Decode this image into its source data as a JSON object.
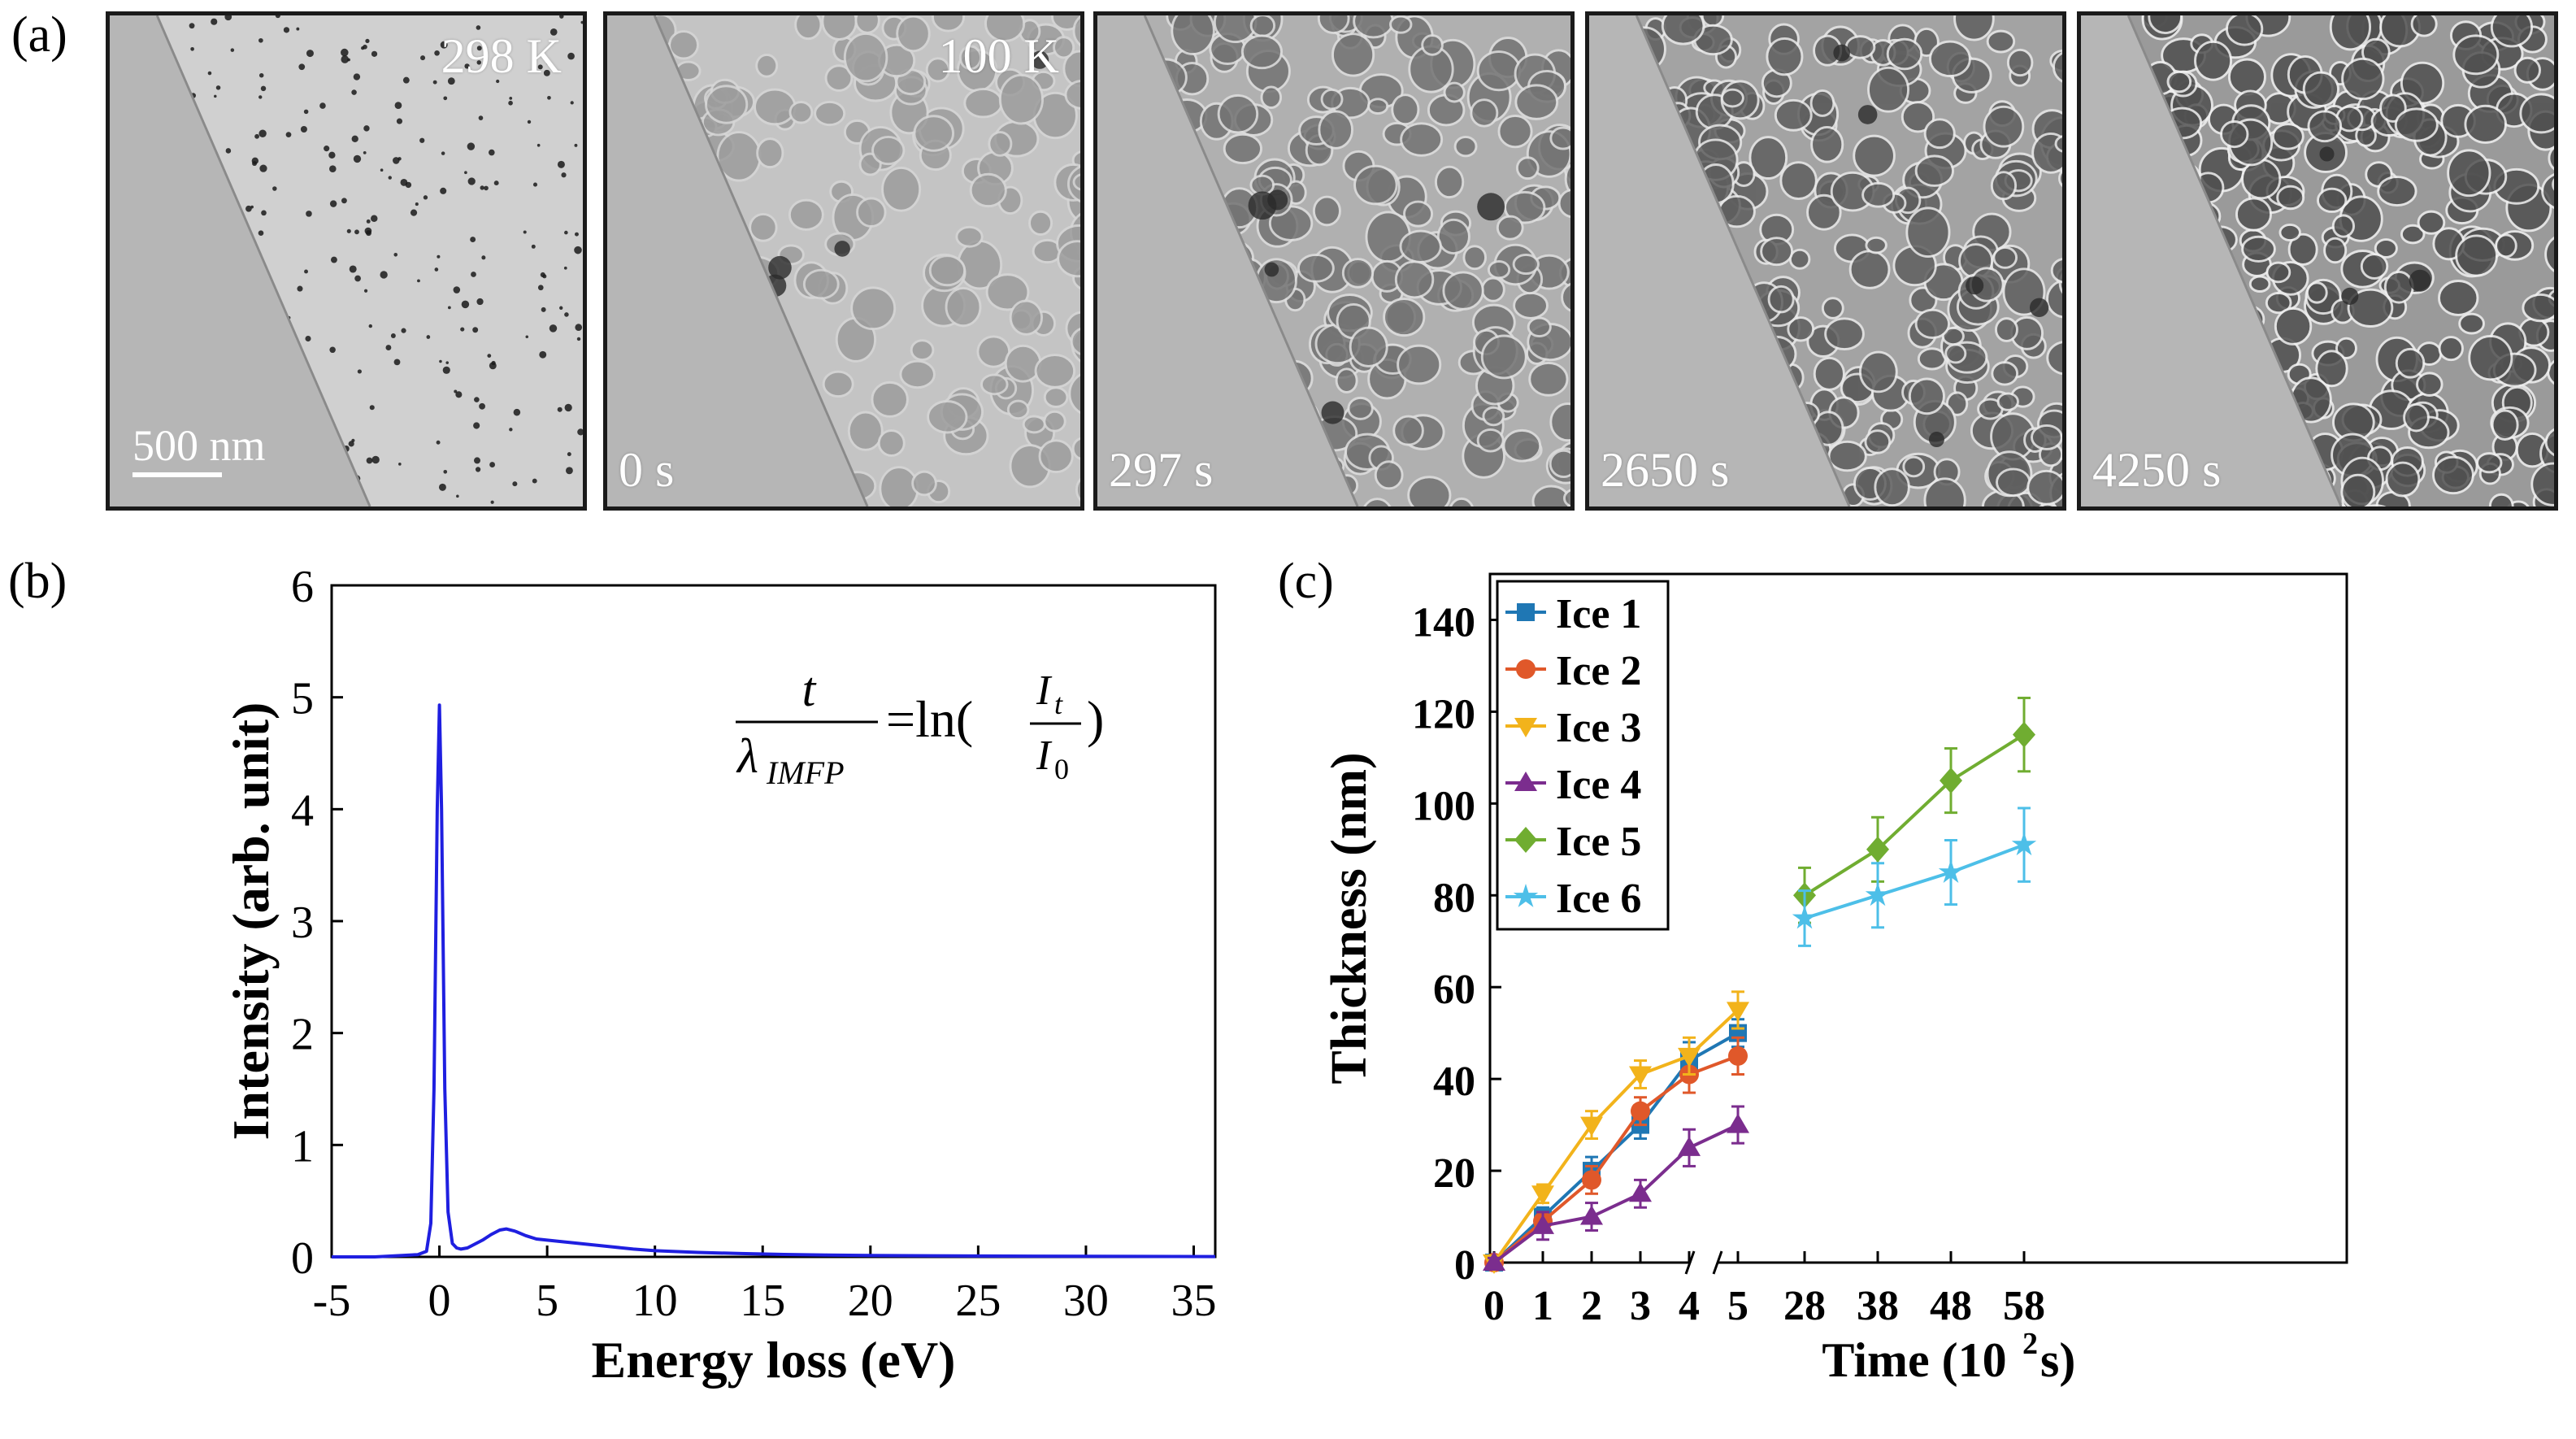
{
  "panel_labels": {
    "a": "(a)",
    "b": "(b)",
    "c": "(c)"
  },
  "micrographs": [
    {
      "temp": "298 K",
      "time": "",
      "scalebar": "500 nm",
      "style": "particles"
    },
    {
      "temp": "100 K",
      "time": "0 s",
      "scalebar": "",
      "style": "cells-light"
    },
    {
      "temp": "",
      "time": "297 s",
      "scalebar": "",
      "style": "cells-mid"
    },
    {
      "temp": "",
      "time": "2650 s",
      "scalebar": "",
      "style": "cells-dark"
    },
    {
      "temp": "",
      "time": "4250 s",
      "scalebar": "",
      "style": "cells-darkest"
    }
  ],
  "formula": {
    "numerator": "t",
    "denominator": "λ",
    "denominator_sub": "IMFP",
    "equals": "=ln(",
    "ratio_top": "I",
    "ratio_top_sub": "t",
    "ratio_bottom": "I",
    "ratio_bottom_sub": "0",
    "close": ")"
  },
  "chart_data": [
    {
      "type": "line",
      "panel": "b",
      "title": "",
      "xlabel": "Energy loss (eV)",
      "ylabel": "Intensity (arb. unit)",
      "xlim": [
        -5,
        36
      ],
      "ylim": [
        0,
        6
      ],
      "xticks": [
        -5,
        0,
        5,
        10,
        15,
        20,
        25,
        30,
        35
      ],
      "yticks": [
        0,
        1,
        2,
        3,
        4,
        5,
        6
      ],
      "color": "#1f1fe0",
      "x": [
        -5,
        -3,
        -2,
        -1,
        -0.6,
        -0.4,
        -0.25,
        -0.1,
        0,
        0.1,
        0.25,
        0.4,
        0.6,
        0.8,
        1.0,
        1.3,
        1.6,
        2.0,
        2.4,
        2.8,
        3.1,
        3.5,
        4.0,
        4.5,
        5.0,
        6.0,
        7.0,
        8.0,
        9.0,
        10.0,
        12.0,
        14.0,
        16.0,
        18.0,
        20.0,
        25.0,
        30.0,
        36.0
      ],
      "y": [
        0.0,
        0.0,
        0.01,
        0.02,
        0.05,
        0.3,
        1.5,
        4.0,
        4.93,
        4.0,
        1.5,
        0.4,
        0.12,
        0.08,
        0.07,
        0.08,
        0.11,
        0.15,
        0.2,
        0.24,
        0.25,
        0.23,
        0.19,
        0.16,
        0.15,
        0.13,
        0.11,
        0.09,
        0.07,
        0.055,
        0.04,
        0.03,
        0.022,
        0.017,
        0.013,
        0.008,
        0.005,
        0.003
      ]
    },
    {
      "type": "line",
      "panel": "c",
      "title": "",
      "xlabel": "Time (10",
      "xlabel_sup": "2",
      "xlabel_end": " s)",
      "ylabel": "Thickness (nm)",
      "ylim": [
        0,
        150
      ],
      "yticks": [
        0,
        20,
        40,
        60,
        80,
        100,
        120,
        140
      ],
      "broken_axis": true,
      "x_left_ticks": [
        0,
        1,
        2,
        3,
        4,
        5
      ],
      "x_right_ticks": [
        28,
        38,
        48,
        58
      ],
      "series": [
        {
          "name": "Ice 1",
          "color": "#1f77b4",
          "marker": "square",
          "x": [
            0,
            1,
            2,
            3,
            4,
            5
          ],
          "y": [
            0,
            10,
            20,
            30,
            44,
            50
          ],
          "err": [
            1,
            2,
            3,
            3,
            4,
            3
          ]
        },
        {
          "name": "Ice 2",
          "color": "#e0582a",
          "marker": "circle",
          "x": [
            0,
            1,
            2,
            3,
            4,
            5
          ],
          "y": [
            0,
            9,
            18,
            33,
            41,
            45
          ],
          "err": [
            1,
            2,
            3,
            3,
            4,
            4
          ]
        },
        {
          "name": "Ice 3",
          "color": "#f2b31b",
          "marker": "triangle-down",
          "x": [
            0,
            1,
            2,
            3,
            4,
            5
          ],
          "y": [
            0,
            15,
            30,
            41,
            45,
            55
          ],
          "err": [
            1,
            2,
            3,
            3,
            4,
            4
          ]
        },
        {
          "name": "Ice 4",
          "color": "#7b2d8e",
          "marker": "triangle-up",
          "x": [
            0,
            1,
            2,
            3,
            4,
            5
          ],
          "y": [
            0,
            8,
            10,
            15,
            25,
            30
          ],
          "err": [
            1,
            3,
            3,
            3,
            4,
            4
          ]
        },
        {
          "name": "Ice 5",
          "color": "#70ad31",
          "marker": "diamond",
          "x": [
            28,
            38,
            48,
            58
          ],
          "y": [
            80,
            90,
            105,
            115
          ],
          "err": [
            6,
            7,
            7,
            8
          ]
        },
        {
          "name": "Ice 6",
          "color": "#4dbfe8",
          "marker": "star",
          "x": [
            28,
            38,
            48,
            58
          ],
          "y": [
            75,
            80,
            85,
            91
          ],
          "err": [
            6,
            7,
            7,
            8
          ]
        }
      ]
    }
  ]
}
